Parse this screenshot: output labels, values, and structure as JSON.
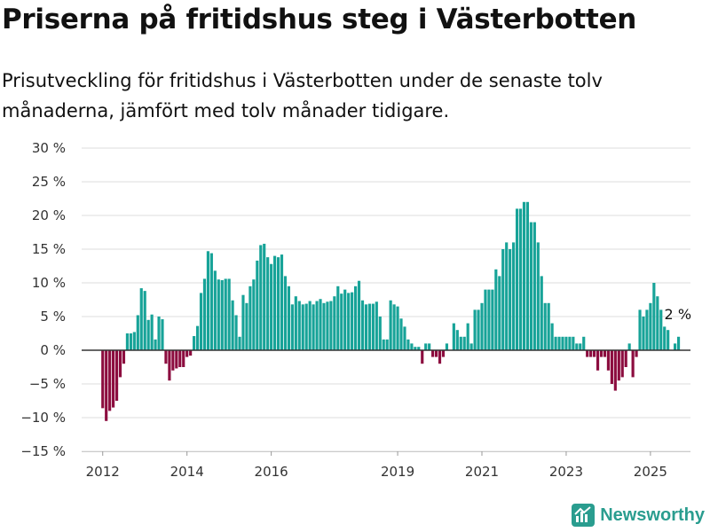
{
  "header": {
    "title": "Priserna på fritidshus steg i Västerbotten",
    "subtitle": "Prisutveckling för fritidshus i Västerbotten under de senaste tolv månaderna, jämfört med tolv månader tidigare."
  },
  "brand": {
    "name": "Newsworthy",
    "icon": "newsworthy-logo-icon",
    "color": "#2a9d8f"
  },
  "chart_data": {
    "type": "bar",
    "title": "Priserna på fritidshus steg i Västerbotten",
    "subtitle": "Prisutveckling för fritidshus i Västerbotten under de senaste tolv månaderna, jämfört med tolv månader tidigare.",
    "xlabel": "",
    "ylabel": "",
    "ylim": [
      -15,
      30
    ],
    "yticks": [
      -15,
      -10,
      -5,
      0,
      5,
      10,
      15,
      20,
      25,
      30
    ],
    "ytick_labels": [
      "−15 %",
      "−10 %",
      "−5 %",
      "0 %",
      "5 %",
      "10 %",
      "15 %",
      "20 %",
      "25 %",
      "30 %"
    ],
    "xlim": [
      2011.5,
      2025.95
    ],
    "xticks": [
      2012,
      2014,
      2016,
      2019,
      2021,
      2023,
      2025
    ],
    "xtick_labels": [
      "2012",
      "2014",
      "2016",
      "2019",
      "2021",
      "2023",
      "2025"
    ],
    "x_unit": "month",
    "x_start": "2011-12",
    "x_end": "2025-06",
    "grid": true,
    "legend": "none",
    "colors": {
      "positive": "#17a398",
      "negative": "#8c0d3f",
      "zero_line": "#333333",
      "grid": "#dddddd"
    },
    "values": [
      0,
      -8.6,
      -10.5,
      -9,
      -8.5,
      -7.5,
      -4,
      -2,
      2.5,
      2.5,
      2.7,
      5.2,
      9.2,
      8.8,
      4.5,
      5.3,
      1.6,
      5,
      4.6,
      -2,
      -4.5,
      -3,
      -2.7,
      -2.5,
      -2.5,
      -1,
      -0.8,
      2.1,
      3.6,
      8.5,
      10.6,
      14.7,
      14.4,
      11.8,
      10.5,
      10.4,
      10.6,
      10.6,
      7.4,
      5.2,
      2,
      8.2,
      7,
      9.5,
      10.5,
      13.3,
      15.6,
      15.8,
      13.8,
      12.8,
      14,
      13.8,
      14.2,
      11,
      9.5,
      6.8,
      8,
      7.3,
      6.8,
      6.9,
      7.3,
      6.8,
      7.3,
      7.6,
      7,
      7.2,
      7.3,
      8,
      9.5,
      8.4,
      9,
      8.5,
      8.6,
      9.5,
      10.3,
      7.4,
      6.8,
      6.9,
      6.9,
      7.2,
      5,
      1.6,
      1.6,
      7.4,
      6.8,
      6.5,
      4.7,
      3.5,
      1.6,
      1,
      0.5,
      0.5,
      -2,
      1,
      1,
      -1,
      -1,
      -2,
      -1,
      1,
      0,
      4,
      3,
      2,
      2,
      4,
      1,
      6,
      6,
      7,
      9,
      9,
      9,
      12,
      11,
      15,
      16,
      15,
      16,
      21,
      21,
      22,
      22,
      19,
      19,
      16,
      11,
      7,
      7,
      4,
      2,
      2,
      2,
      2,
      2,
      2,
      1,
      1,
      2,
      -1,
      -1,
      -1,
      -3,
      -1,
      -1,
      -3,
      -5,
      -6,
      -4.5,
      -4,
      -2.5,
      1,
      -4,
      -1,
      6,
      5,
      6,
      7,
      10,
      8,
      6,
      3.5,
      3,
      0,
      1,
      2
    ],
    "annotations": [
      {
        "text": "2 %",
        "at": "last"
      }
    ]
  }
}
